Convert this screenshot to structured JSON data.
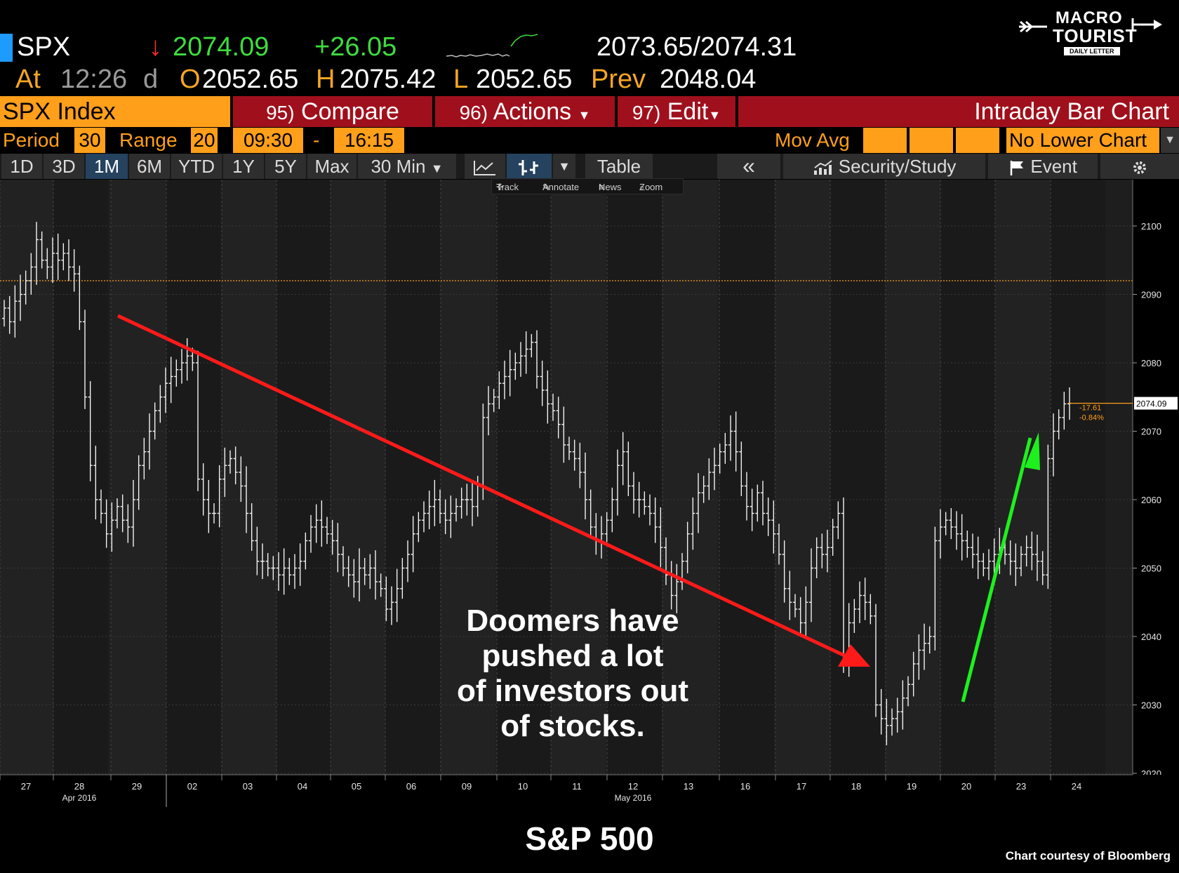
{
  "quote": {
    "ticker": "SPX",
    "down_arrow": "↓",
    "last": "2074.09",
    "change": "+26.05",
    "bid_ask": "2073.65/2074.31",
    "at_label": "At",
    "time": "12:26",
    "time_flag": "d",
    "open_label": "O",
    "open": "2052.65",
    "high_label": "H",
    "high": "2075.42",
    "low_label": "L",
    "low": "2052.65",
    "prev_label": "Prev",
    "prev": "2048.04"
  },
  "logo": {
    "line1": "MACRO",
    "line2": "TOURIST",
    "tagline": "DAILY LETTER"
  },
  "header": {
    "security": "SPX Index",
    "compare_num": "95)",
    "compare_label": "Compare",
    "actions_num": "96)",
    "actions_label": "Actions",
    "edit_num": "97)",
    "edit_label": "Edit",
    "chart_type": "Intraday Bar Chart"
  },
  "period_row": {
    "period_label": "Period",
    "period_value": "30",
    "range_label": "Range",
    "range_value": "20",
    "start_time": "09:30",
    "dash": "-",
    "end_time": "16:15",
    "mov_avg_label": "Mov Avg",
    "lower_chart": "No Lower Chart"
  },
  "tabs": {
    "items": [
      "1D",
      "3D",
      "1M",
      "6M",
      "YTD",
      "1Y",
      "5Y",
      "Max"
    ],
    "active": "1M",
    "interval": "30 Min",
    "table": "Table",
    "back": "«",
    "security_study": "Security/Study",
    "event": "Event"
  },
  "sub_toolbar": {
    "track": "Track",
    "annotate": "Annotate",
    "news": "News",
    "zoom": "Zoom"
  },
  "chart_data": {
    "type": "bar",
    "x_labels": [
      "27",
      "28",
      "29",
      "02",
      "03",
      "04",
      "05",
      "06",
      "09",
      "10",
      "11",
      "12",
      "13",
      "16",
      "17",
      "18",
      "19",
      "20",
      "23",
      "24"
    ],
    "month_labels": [
      {
        "day_index": 1,
        "text": "Apr 2016"
      },
      {
        "day_index": 11,
        "text": "May 2016"
      }
    ],
    "y_ticks": [
      2020,
      2030,
      2040,
      2050,
      2060,
      2070,
      2080,
      2090,
      2100
    ],
    "ylim": [
      2019,
      2110
    ],
    "prev_close_line": 2092,
    "last_value_label": "2074.09",
    "last_value": 2074.09,
    "change_label": "-17.61",
    "pct_change_label": "-0.84%",
    "series": [
      {
        "values": [
          2088,
          2086,
          2089,
          2090,
          2092,
          2094,
          2098,
          2095,
          2094,
          2096,
          2095,
          2096,
          2094,
          2093,
          2086,
          2075,
          2065,
          2060,
          2058,
          2055,
          2057,
          2059,
          2057,
          2056,
          2060,
          2065,
          2067,
          2070,
          2073,
          2075,
          2077,
          2078,
          2079,
          2080,
          2081,
          2080,
          2063,
          2060,
          2058,
          2058,
          2063,
          2065,
          2066,
          2064,
          2062,
          2058,
          2054,
          2051,
          2051,
          2050,
          2050,
          2049,
          2050,
          2049,
          2050,
          2051,
          2054,
          2056,
          2057,
          2056,
          2055,
          2054,
          2052,
          2050,
          2049,
          2048,
          2050,
          2049,
          2050,
          2048,
          2047,
          2044,
          2045,
          2047,
          2050,
          2052,
          2055,
          2057,
          2058,
          2059,
          2060,
          2058,
          2057,
          2058,
          2059,
          2060,
          2060,
          2059,
          2062,
          2072,
          2074,
          2075,
          2077,
          2078,
          2079,
          2080,
          2081,
          2082,
          2083,
          2078,
          2076,
          2074,
          2073,
          2071,
          2068,
          2067,
          2066,
          2064,
          2060,
          2056,
          2054,
          2055,
          2057,
          2060,
          2065,
          2067,
          2062,
          2060,
          2060,
          2059,
          2058,
          2056,
          2053,
          2049,
          2046,
          2048,
          2051,
          2055,
          2058,
          2061,
          2062,
          2064,
          2065,
          2067,
          2068,
          2070,
          2067,
          2062,
          2059,
          2058,
          2061,
          2058,
          2057,
          2055,
          2052,
          2047,
          2045,
          2044,
          2042,
          2045,
          2050,
          2053,
          2052,
          2053,
          2056,
          2058,
          2037,
          2042,
          2044,
          2046,
          2045,
          2043,
          2030,
          2028,
          2027,
          2028,
          2029,
          2031,
          2033,
          2036,
          2038,
          2039,
          2040,
          2054,
          2056,
          2057,
          2056,
          2055,
          2054,
          2053,
          2052,
          2051,
          2050,
          2051,
          2052,
          2053,
          2052,
          2051,
          2050,
          2052,
          2053,
          2052,
          2051,
          2049,
          2066,
          2070,
          2072,
          2074,
          2074.09
        ]
      }
    ]
  },
  "annotations": {
    "doom_lines": [
      "Doomers have",
      "pushed a lot",
      "of investors out",
      "of stocks."
    ],
    "title": "S&P 500",
    "credit": "Chart courtesy of Bloomberg"
  },
  "colors": {
    "orange": "#ff9f1a",
    "red_bar": "#a0101c",
    "green": "#2ee52e",
    "red_arrow": "#ff1a1a",
    "green_arrow": "#1ef01e",
    "quote_green": "#3fdc3f",
    "quote_orange": "#f5a623"
  }
}
